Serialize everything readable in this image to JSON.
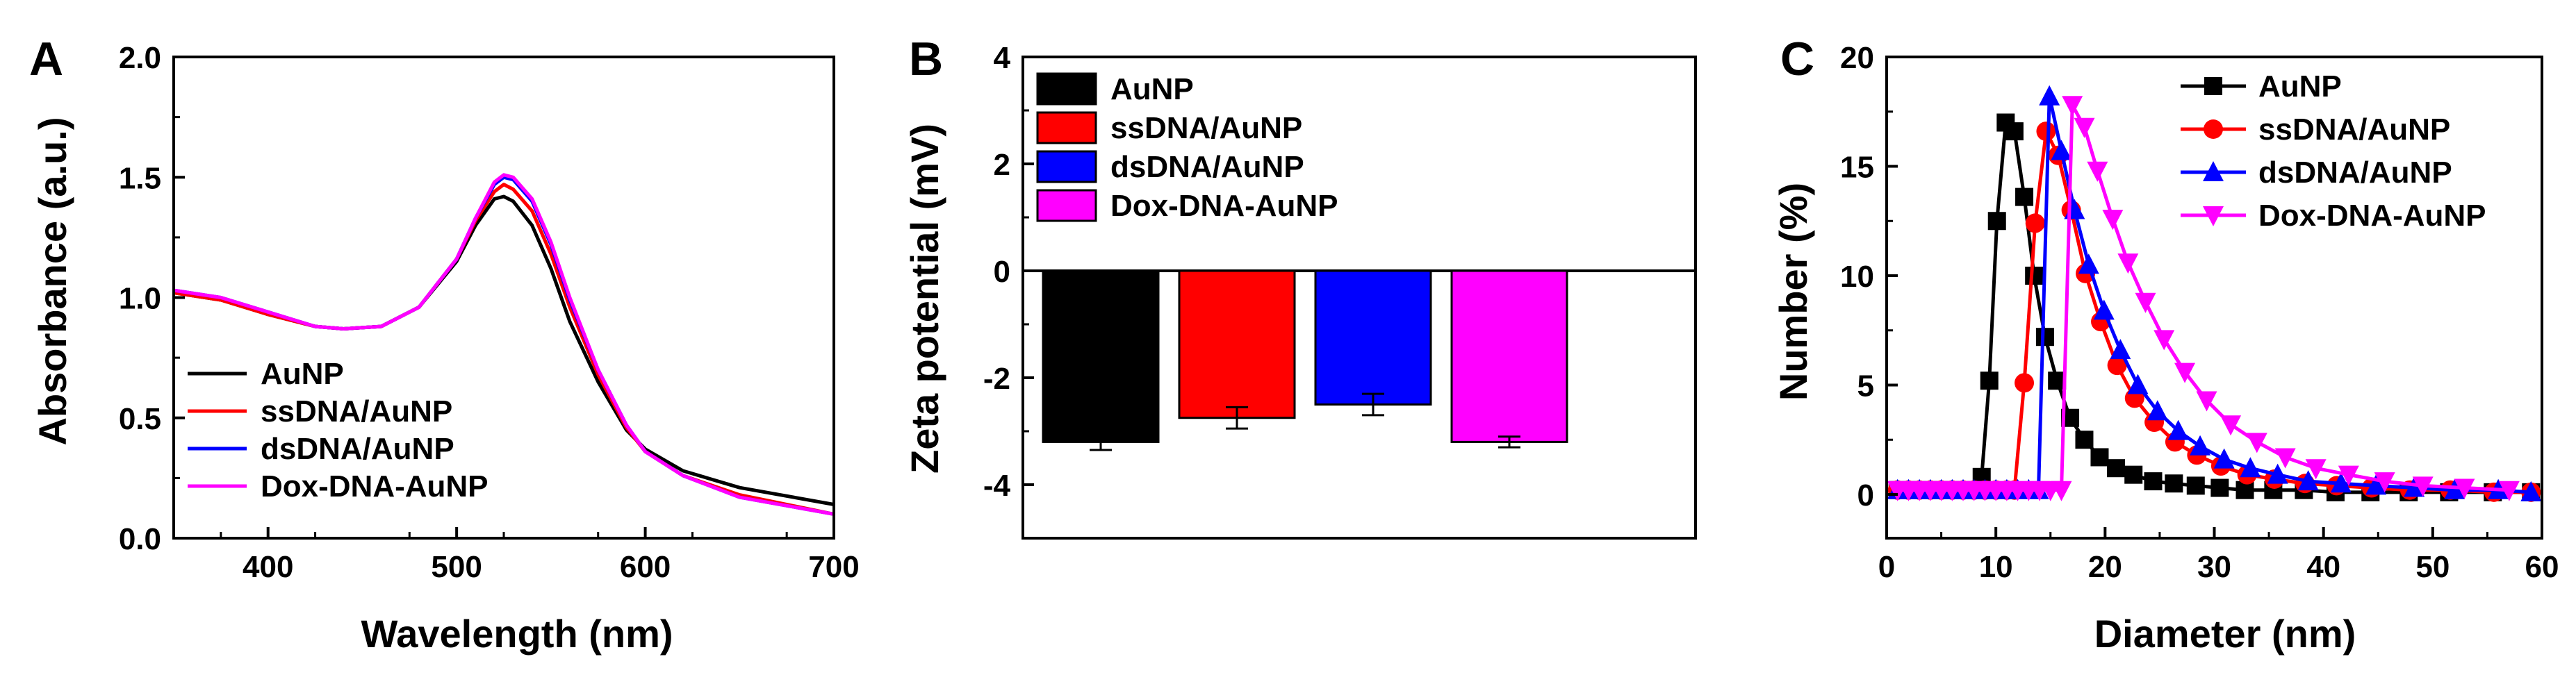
{
  "colors": {
    "AuNP": "#000000",
    "ssDNA/AuNP": "#ff0000",
    "dsDNA/AuNP": "#0000ff",
    "Dox-DNA-AuNP": "#ff00ff"
  },
  "chart_data": [
    {
      "panel": "A",
      "type": "line",
      "title": "",
      "xlabel": "Wavelength (nm)",
      "ylabel": "Absorbance (a.u.)",
      "xlim": [
        350,
        700
      ],
      "ylim": [
        0.0,
        2.0
      ],
      "xticks": [
        400,
        500,
        600,
        700
      ],
      "yticks": [
        0.0,
        0.5,
        1.0,
        1.5,
        2.0
      ],
      "tick_labels_x": [
        "400",
        "500",
        "600",
        "700"
      ],
      "tick_labels_y": [
        "0.0",
        "0.5",
        "1.0",
        "1.5",
        "2.0"
      ],
      "legend_position": "bottom-left",
      "x": [
        350,
        375,
        400,
        425,
        440,
        460,
        480,
        500,
        510,
        520,
        525,
        530,
        540,
        550,
        560,
        575,
        590,
        600,
        620,
        650,
        700
      ],
      "series": [
        {
          "name": "AuNP",
          "values": [
            1.02,
            0.99,
            0.93,
            0.88,
            0.87,
            0.88,
            0.96,
            1.15,
            1.3,
            1.41,
            1.42,
            1.4,
            1.3,
            1.12,
            0.9,
            0.65,
            0.45,
            0.37,
            0.28,
            0.21,
            0.14
          ]
        },
        {
          "name": "ssDNA/AuNP",
          "values": [
            1.02,
            0.99,
            0.93,
            0.88,
            0.87,
            0.88,
            0.96,
            1.16,
            1.32,
            1.44,
            1.47,
            1.45,
            1.36,
            1.18,
            0.96,
            0.68,
            0.46,
            0.36,
            0.26,
            0.18,
            0.1
          ]
        },
        {
          "name": "dsDNA/AuNP",
          "values": [
            1.03,
            1.0,
            0.94,
            0.88,
            0.87,
            0.88,
            0.96,
            1.16,
            1.33,
            1.47,
            1.5,
            1.49,
            1.4,
            1.22,
            0.99,
            0.7,
            0.47,
            0.36,
            0.26,
            0.17,
            0.1
          ]
        },
        {
          "name": "Dox-DNA-AuNP",
          "values": [
            1.03,
            1.0,
            0.94,
            0.88,
            0.87,
            0.88,
            0.96,
            1.16,
            1.33,
            1.48,
            1.51,
            1.5,
            1.41,
            1.23,
            1.0,
            0.7,
            0.47,
            0.36,
            0.26,
            0.17,
            0.1
          ]
        }
      ]
    },
    {
      "panel": "B",
      "type": "bar",
      "title": "",
      "xlabel": "",
      "ylabel": "Zeta potential (mV)",
      "ylim": [
        -5,
        4
      ],
      "yticks": [
        -4,
        -2,
        0,
        2,
        4
      ],
      "tick_labels_y": [
        "-4",
        "-2",
        "0",
        "2",
        "4"
      ],
      "legend_position": "top-left",
      "categories": [
        "AuNP",
        "ssDNA/AuNP",
        "dsDNA/AuNP",
        "Dox-DNA-AuNP"
      ],
      "values": [
        -3.2,
        -2.75,
        -2.5,
        -3.2
      ],
      "errors": [
        0.15,
        0.2,
        0.2,
        0.1
      ]
    },
    {
      "panel": "C",
      "type": "line",
      "title": "",
      "xlabel": "Diameter (nm)",
      "ylabel": "Number (%)",
      "xlim": [
        0,
        60
      ],
      "ylim": [
        -2,
        20
      ],
      "xticks": [
        0,
        10,
        20,
        30,
        40,
        50,
        60
      ],
      "yticks": [
        0,
        5,
        10,
        15,
        20
      ],
      "tick_labels_x": [
        "0",
        "10",
        "20",
        "30",
        "40",
        "50",
        "60"
      ],
      "tick_labels_y": [
        "0",
        "5",
        "10",
        "15",
        "20"
      ],
      "legend_position": "top-right",
      "series": [
        {
          "name": "AuNP",
          "marker": "square",
          "x": [
            1,
            2,
            3,
            4,
            5,
            6,
            7,
            8,
            8.7,
            9.4,
            10.1,
            10.9,
            11.7,
            12.6,
            13.5,
            14.5,
            15.6,
            16.8,
            18.1,
            19.5,
            21,
            22.6,
            24.4,
            26.3,
            28.3,
            30.5,
            32.8,
            35.4,
            38.2,
            41.1,
            44.3,
            47.8,
            51.5,
            55.5,
            59
          ],
          "y": [
            0.2,
            0.2,
            0.2,
            0.2,
            0.2,
            0.2,
            0.2,
            0.2,
            0.8,
            5.2,
            12.5,
            17.0,
            16.6,
            13.6,
            10.0,
            7.2,
            5.2,
            3.5,
            2.5,
            1.7,
            1.2,
            0.9,
            0.6,
            0.5,
            0.4,
            0.3,
            0.2,
            0.2,
            0.2,
            0.1,
            0.1,
            0.1,
            0.1,
            0.1,
            0.1
          ]
        },
        {
          "name": "ssDNA/AuNP",
          "marker": "circle",
          "x": [
            1,
            2,
            3,
            4,
            5,
            6,
            7,
            8,
            9,
            10,
            11,
            11.7,
            12.6,
            13.6,
            14.6,
            15.7,
            16.9,
            18.2,
            19.6,
            21.1,
            22.7,
            24.5,
            26.4,
            28.4,
            30.6,
            33,
            35.5,
            38.3,
            41.2,
            44.4,
            47.9,
            51.6,
            55.6,
            59
          ],
          "y": [
            0.2,
            0.2,
            0.2,
            0.2,
            0.2,
            0.2,
            0.2,
            0.2,
            0.2,
            0.2,
            0.2,
            0.2,
            5.1,
            12.4,
            16.6,
            15.5,
            13.0,
            10.1,
            7.9,
            5.9,
            4.4,
            3.3,
            2.4,
            1.8,
            1.3,
            0.9,
            0.7,
            0.5,
            0.4,
            0.3,
            0.2,
            0.2,
            0.1,
            0.1
          ]
        },
        {
          "name": "dsDNA/AuNP",
          "marker": "triangle-up",
          "x": [
            1,
            2,
            3,
            4,
            5,
            6,
            7,
            8,
            9,
            10,
            11,
            12,
            13,
            13.9,
            14.9,
            16.0,
            17.2,
            18.5,
            19.9,
            21.4,
            23.0,
            24.8,
            26.7,
            28.7,
            30.9,
            33.3,
            35.8,
            38.6,
            41.6,
            44.8,
            48.3,
            52.0,
            56.0,
            59
          ],
          "y": [
            0.2,
            0.2,
            0.2,
            0.2,
            0.2,
            0.2,
            0.2,
            0.2,
            0.2,
            0.2,
            0.2,
            0.2,
            0.2,
            0.2,
            18.2,
            15.7,
            13.0,
            10.5,
            8.4,
            6.6,
            5.0,
            3.8,
            2.9,
            2.2,
            1.6,
            1.2,
            0.9,
            0.6,
            0.5,
            0.4,
            0.3,
            0.2,
            0.2,
            0.1
          ]
        },
        {
          "name": "Dox-DNA-AuNP",
          "marker": "triangle-down",
          "x": [
            1,
            2,
            3,
            4,
            5,
            6,
            7,
            8,
            9,
            10,
            11,
            12,
            13,
            14,
            15,
            16,
            17,
            18.1,
            19.3,
            20.7,
            22.1,
            23.7,
            25.4,
            27.3,
            29.3,
            31.5,
            33.9,
            36.5,
            39.3,
            42.3,
            45.6,
            49.1,
            52.9,
            57
          ],
          "y": [
            0.2,
            0.2,
            0.2,
            0.2,
            0.2,
            0.2,
            0.2,
            0.2,
            0.2,
            0.2,
            0.2,
            0.2,
            0.2,
            0.2,
            0.2,
            0.2,
            17.8,
            16.8,
            14.8,
            12.6,
            10.6,
            8.8,
            7.1,
            5.6,
            4.3,
            3.2,
            2.4,
            1.7,
            1.2,
            0.9,
            0.6,
            0.4,
            0.3,
            0.2
          ]
        }
      ]
    }
  ]
}
